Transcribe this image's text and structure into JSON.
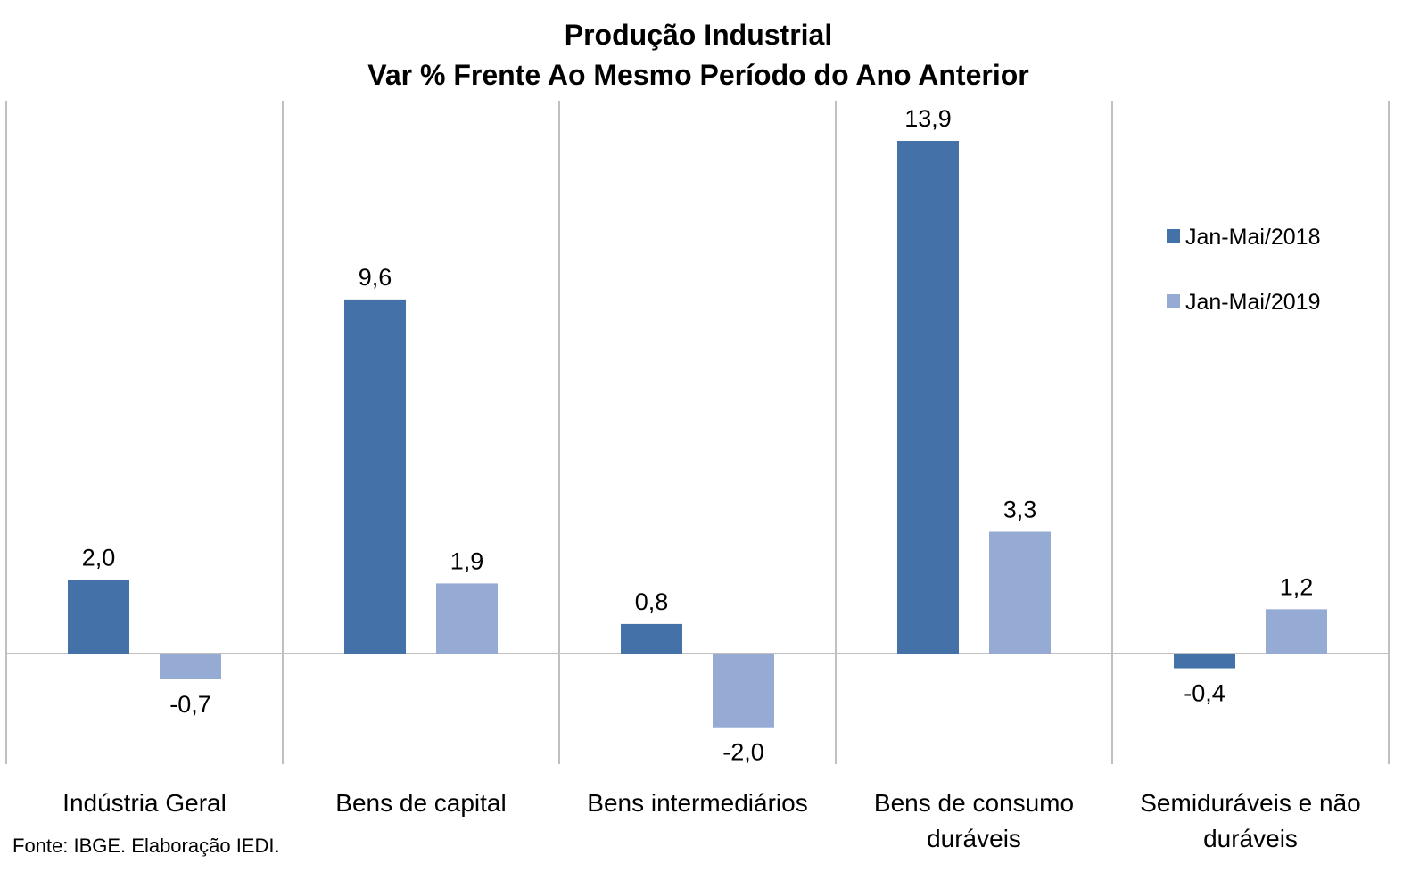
{
  "chart_data": {
    "type": "bar",
    "title": [
      "Produção Industrial",
      "Var % Frente Ao Mesmo Período do Ano Anterior"
    ],
    "categories": [
      [
        "Indústria Geral"
      ],
      [
        "Bens de capital"
      ],
      [
        "Bens intermediários"
      ],
      [
        "Bens de consumo",
        "duráveis"
      ],
      [
        "Semiduráveis e não",
        "duráveis"
      ]
    ],
    "series": [
      {
        "name": "Jan-Mai/2018",
        "color": "#4472a8",
        "values": [
          2.0,
          9.6,
          0.8,
          13.9,
          -0.4
        ],
        "labels": [
          "2,0",
          "9,6",
          "0,8",
          "13,9",
          "-0,4"
        ]
      },
      {
        "name": "Jan-Mai/2019",
        "color": "#95abd4",
        "values": [
          -0.7,
          1.9,
          -2.0,
          3.3,
          1.2
        ],
        "labels": [
          "-0,7",
          "1,9",
          "-2,0",
          "3,3",
          "1,2"
        ]
      }
    ],
    "ylim": [
      -3.0,
      15.0
    ],
    "grid": false,
    "legend": "right"
  },
  "source": "Fonte: IBGE. Elaboração IEDI."
}
